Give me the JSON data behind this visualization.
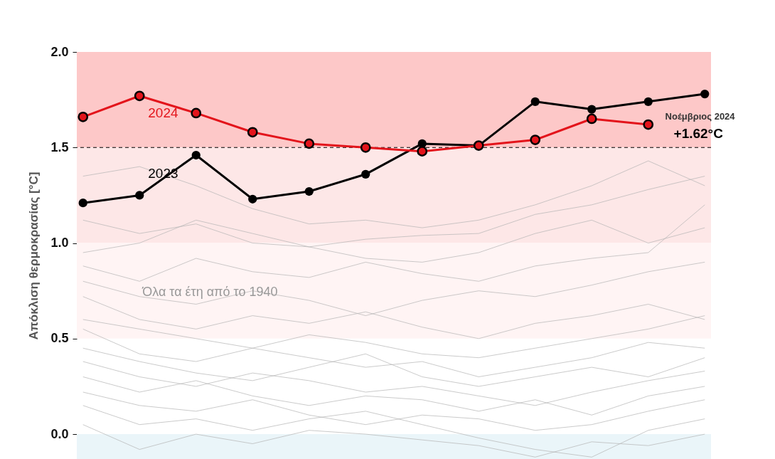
{
  "chart_data": {
    "type": "line",
    "ylabel": "Απόκλιση θερμοκρασίας [°C]",
    "categories": [
      null,
      null,
      null,
      null,
      null,
      null,
      null,
      null,
      null,
      null,
      null,
      null
    ],
    "ylim": [
      -0.13,
      2.0
    ],
    "yticks": [
      {
        "value": 0,
        "label": "0.0"
      },
      0.5,
      {
        "value": 1,
        "label": "1.0"
      },
      1.5,
      {
        "value": 2,
        "label": "2.0"
      }
    ],
    "grid": false,
    "legend": false,
    "marker": "circle",
    "series": [
      {
        "color": "#b4b4b4",
        "marker": "none",
        "values": [
          1.12,
          1.05,
          1.1,
          1.0,
          0.98,
          1.02,
          1.04,
          1.05,
          1.15,
          1.2,
          1.28,
          1.35
        ]
      },
      {
        "color": "#b4b4b4",
        "marker": "none",
        "values": [
          1.35,
          1.4,
          1.3,
          1.18,
          1.1,
          1.12,
          1.08,
          1.12,
          1.2,
          1.3,
          1.43,
          1.3
        ]
      },
      {
        "color": "#b4b4b4",
        "marker": "none",
        "values": [
          0.95,
          1.0,
          1.12,
          1.05,
          0.98,
          0.92,
          0.9,
          0.95,
          1.05,
          1.12,
          1.0,
          1.08
        ]
      },
      {
        "color": "#b4b4b4",
        "marker": "none",
        "values": [
          0.88,
          0.8,
          0.92,
          0.85,
          0.82,
          0.9,
          0.84,
          0.8,
          0.88,
          0.92,
          0.95,
          1.2
        ]
      },
      {
        "color": "#b4b4b4",
        "marker": "none",
        "values": [
          0.8,
          0.72,
          0.68,
          0.75,
          0.7,
          0.62,
          0.7,
          0.75,
          0.72,
          0.78,
          0.85,
          0.9
        ]
      },
      {
        "color": "#b4b4b4",
        "marker": "none",
        "values": [
          0.72,
          0.6,
          0.55,
          0.62,
          0.58,
          0.64,
          0.56,
          0.5,
          0.58,
          0.62,
          0.68,
          0.6
        ]
      },
      {
        "color": "#b4b4b4",
        "marker": "none",
        "values": [
          0.6,
          0.55,
          0.5,
          0.45,
          0.52,
          0.48,
          0.42,
          0.4,
          0.45,
          0.5,
          0.55,
          0.62
        ]
      },
      {
        "color": "#b4b4b4",
        "marker": "none",
        "values": [
          0.55,
          0.42,
          0.38,
          0.45,
          0.4,
          0.35,
          0.38,
          0.3,
          0.35,
          0.4,
          0.48,
          0.45
        ]
      },
      {
        "color": "#b4b4b4",
        "marker": "none",
        "values": [
          0.45,
          0.38,
          0.32,
          0.28,
          0.35,
          0.42,
          0.3,
          0.25,
          0.3,
          0.35,
          0.3,
          0.4
        ]
      },
      {
        "color": "#b4b4b4",
        "marker": "none",
        "values": [
          0.38,
          0.3,
          0.25,
          0.32,
          0.28,
          0.22,
          0.25,
          0.2,
          0.15,
          0.22,
          0.28,
          0.33
        ]
      },
      {
        "color": "#b4b4b4",
        "marker": "none",
        "values": [
          0.3,
          0.22,
          0.28,
          0.2,
          0.15,
          0.2,
          0.18,
          0.12,
          0.18,
          0.1,
          0.2,
          0.25
        ]
      },
      {
        "color": "#b4b4b4",
        "marker": "none",
        "values": [
          0.22,
          0.15,
          0.12,
          0.18,
          0.1,
          0.05,
          0.1,
          0.08,
          0.02,
          0.05,
          0.12,
          0.18
        ]
      },
      {
        "color": "#b4b4b4",
        "marker": "none",
        "values": [
          0.15,
          0.05,
          0.08,
          0.02,
          0.08,
          0.12,
          0.05,
          -0.02,
          -0.08,
          -0.12,
          0.02,
          0.08
        ]
      },
      {
        "color": "#b4b4b4",
        "marker": "none",
        "values": [
          0.05,
          -0.08,
          0.0,
          -0.05,
          0.02,
          0.0,
          -0.03,
          -0.06,
          -0.12,
          -0.04,
          -0.06,
          0.0
        ]
      },
      {
        "name": "2023",
        "color": "#000000",
        "values": [
          1.21,
          1.25,
          1.46,
          1.23,
          1.27,
          1.36,
          1.52,
          1.51,
          1.74,
          1.7,
          1.74,
          1.78
        ]
      },
      {
        "name": "2024",
        "color": "#e3141b",
        "values": [
          1.66,
          1.77,
          1.68,
          1.58,
          1.52,
          1.5,
          1.48,
          1.51,
          1.54,
          1.65,
          1.62,
          null
        ]
      }
    ],
    "bands": [
      {
        "axis": "y",
        "from": 1.5,
        "to": 2.0,
        "color": "#fdc8c8"
      },
      {
        "axis": "y",
        "from": 1.0,
        "to": 1.5,
        "color": "#fde7e7"
      },
      {
        "axis": "y",
        "from": 0.5,
        "to": 1.0,
        "color": "#fff4f4"
      },
      {
        "axis": "y",
        "from": -0.13,
        "to": 0.0,
        "color": "#eaf5f9"
      }
    ],
    "ref_lines": [
      {
        "axis": "y",
        "value": 1.5,
        "color": "#000000",
        "line_style": "dashed"
      }
    ],
    "annotations": [
      "Όλα τα έτη από το 1940",
      "Νοέμβριος 2024",
      "+1.62°C"
    ]
  }
}
